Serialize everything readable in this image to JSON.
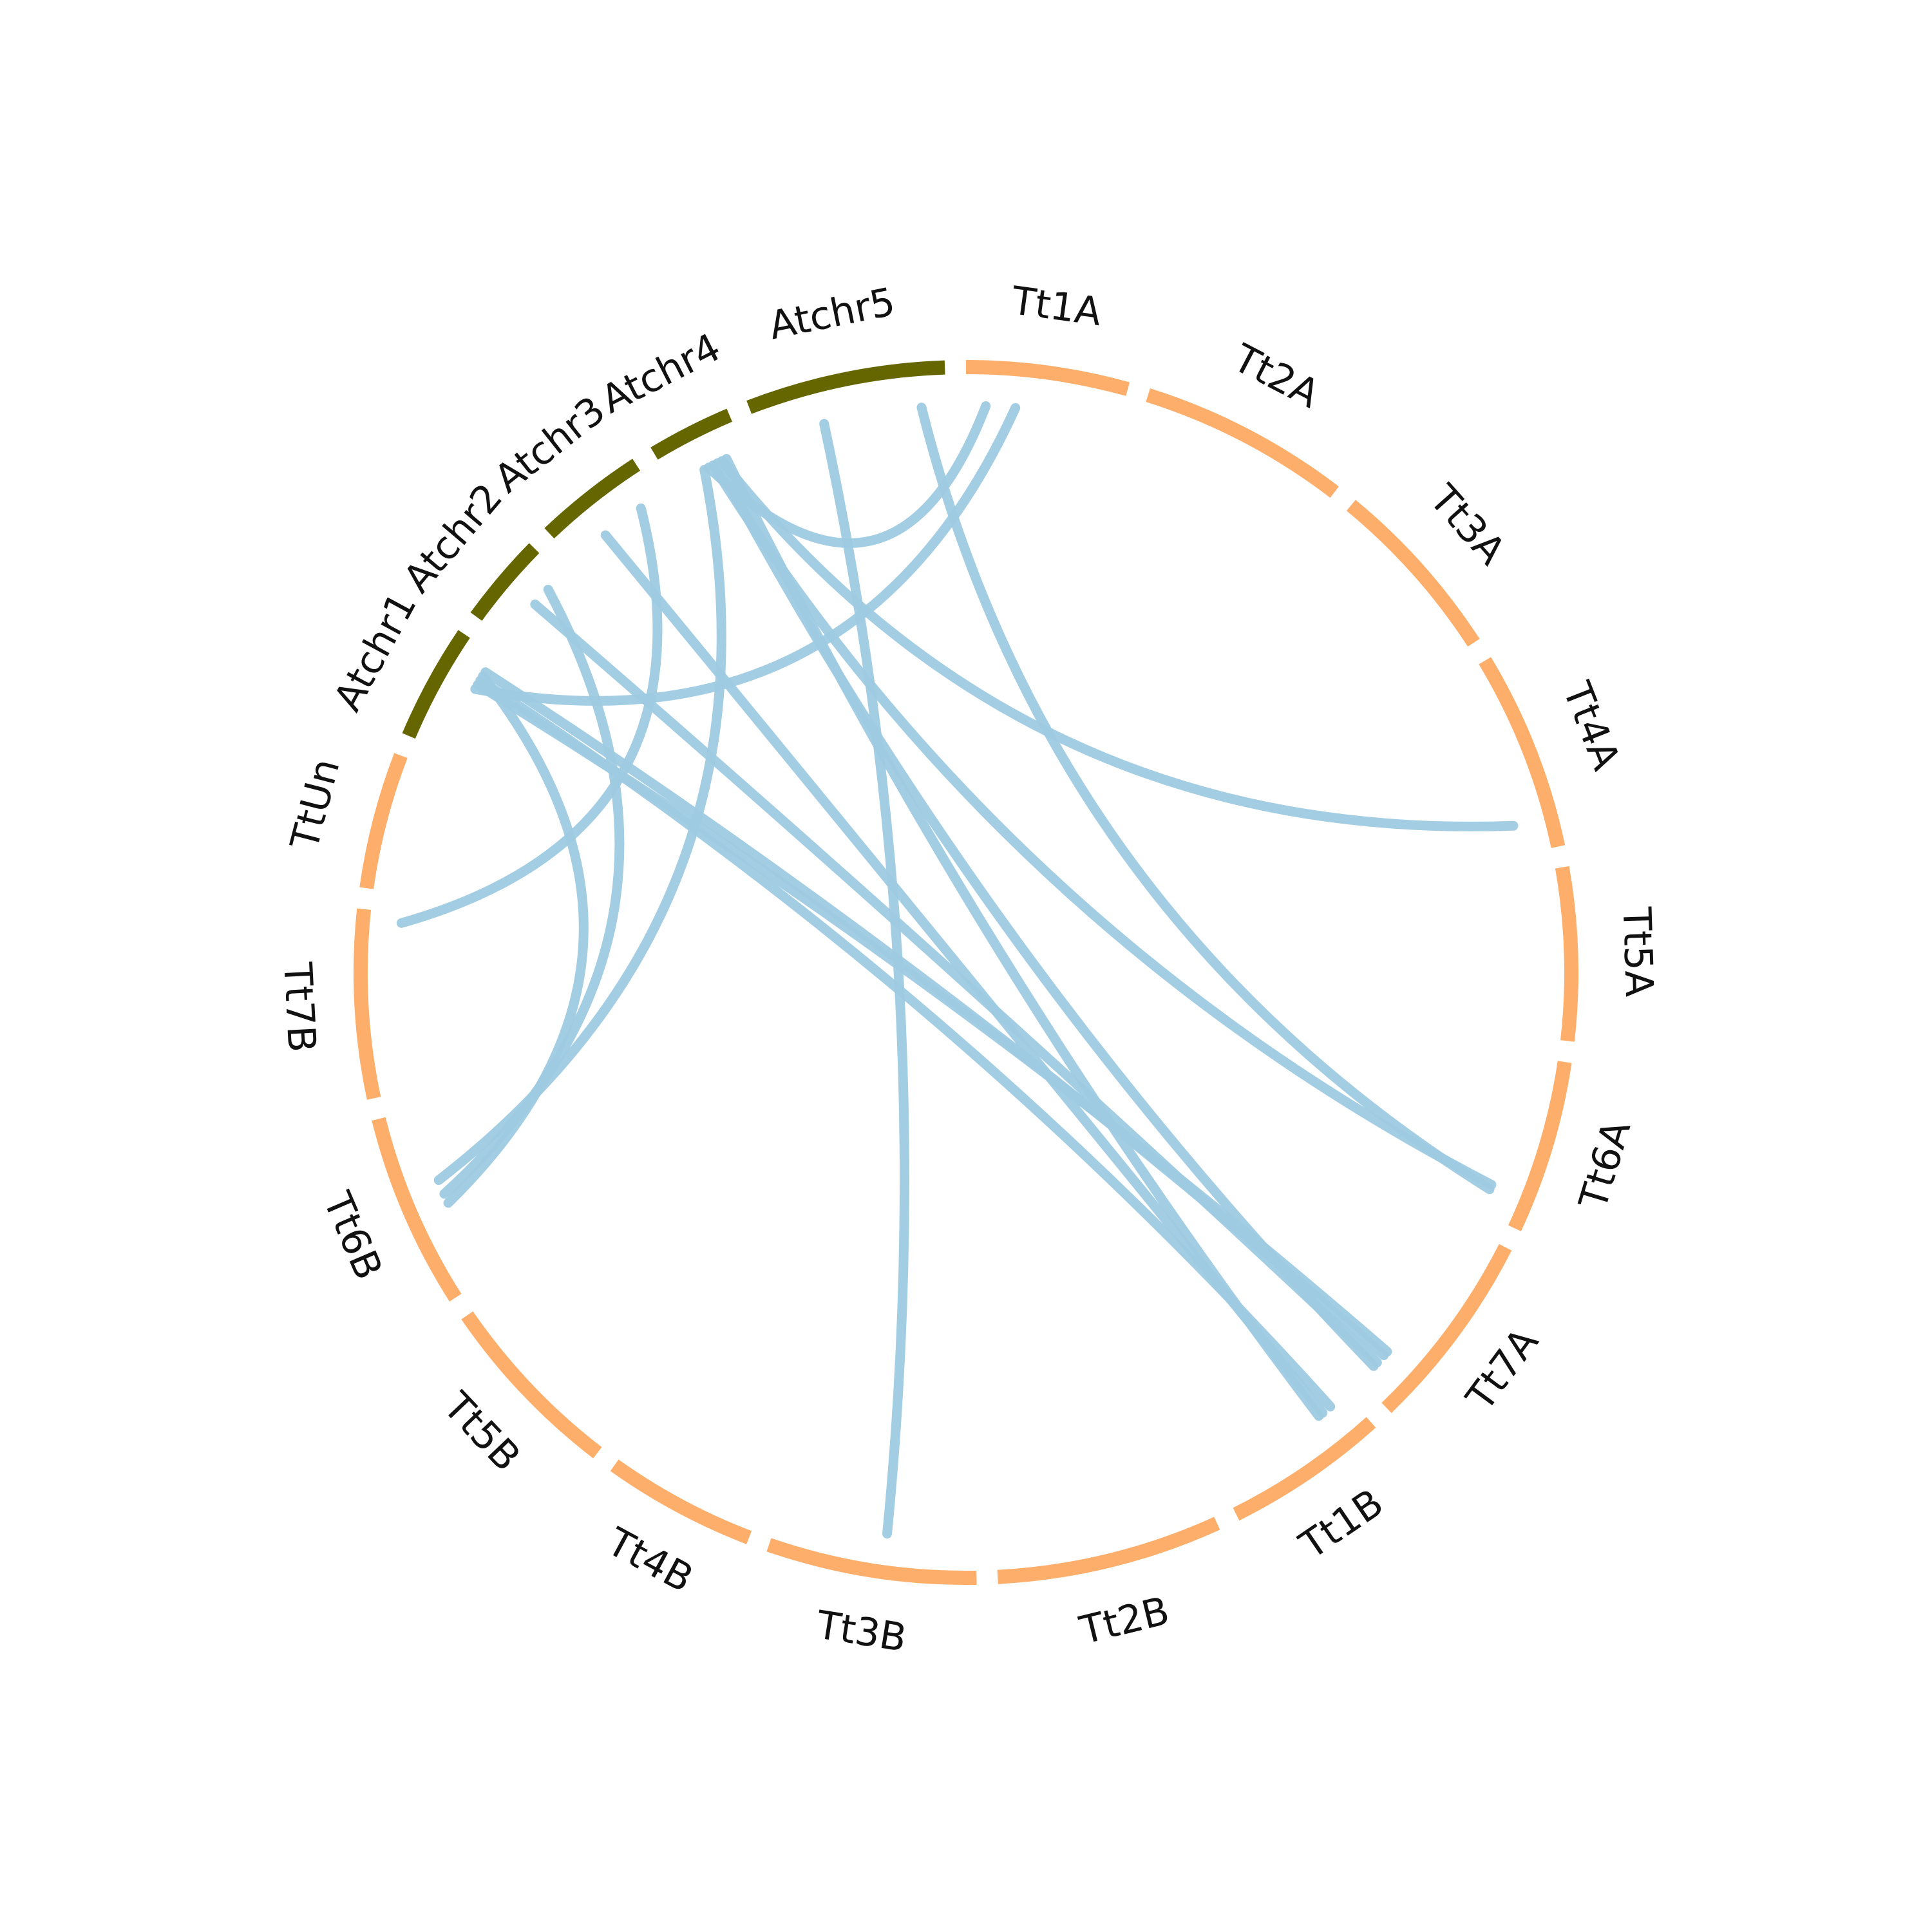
{
  "chart_data": {
    "type": "chord",
    "colors": {
      "wheat": "#fdae6b",
      "arabidopsis": "#666600",
      "link": "#9ecae1"
    },
    "segments": [
      {
        "name": "Tt1A",
        "group": "wheat",
        "start": 0.0,
        "end": 15.5
      },
      {
        "name": "Tt2A",
        "group": "wheat",
        "start": 17.5,
        "end": 37.5
      },
      {
        "name": "Tt3A",
        "group": "wheat",
        "start": 39.5,
        "end": 57.0
      },
      {
        "name": "Tt4A",
        "group": "wheat",
        "start": 59.0,
        "end": 78.0
      },
      {
        "name": "Tt5A",
        "group": "wheat",
        "start": 80.0,
        "end": 96.5
      },
      {
        "name": "Tt6A",
        "group": "wheat",
        "start": 98.5,
        "end": 115.0
      },
      {
        "name": "Tt7A",
        "group": "wheat",
        "start": 117.0,
        "end": 136.0
      },
      {
        "name": "Tt1B",
        "group": "wheat",
        "start": 138.0,
        "end": 153.5
      },
      {
        "name": "Tt2B",
        "group": "wheat",
        "start": 155.5,
        "end": 177.0
      },
      {
        "name": "Tt3B",
        "group": "wheat",
        "start": 179.0,
        "end": 199.0
      },
      {
        "name": "Tt4B",
        "group": "wheat",
        "start": 201.0,
        "end": 215.5
      },
      {
        "name": "Tt5B",
        "group": "wheat",
        "start": 217.5,
        "end": 235.5
      },
      {
        "name": "Tt6B",
        "group": "wheat",
        "start": 237.5,
        "end": 256.0
      },
      {
        "name": "Tt7B",
        "group": "wheat",
        "start": 258.0,
        "end": 276.0
      },
      {
        "name": "TtUn",
        "group": "wheat",
        "start": 278.0,
        "end": 291.0
      },
      {
        "name": "Atchr1",
        "group": "arabidopsis",
        "start": 293.0,
        "end": 304.0
      },
      {
        "name": "Atchr2",
        "group": "arabidopsis",
        "start": 306.0,
        "end": 314.5
      },
      {
        "name": "Atchr3",
        "group": "arabidopsis",
        "start": 316.5,
        "end": 327.0
      },
      {
        "name": "Atchr4",
        "group": "arabidopsis",
        "start": 329.0,
        "end": 337.0
      },
      {
        "name": "Atchr5",
        "group": "arabidopsis",
        "start": 339.0,
        "end": 358.0
      }
    ],
    "links": [
      {
        "from": "Atchr1",
        "from_pos": 302.0,
        "to": "Tt7A",
        "to_pos": 132.5
      },
      {
        "from": "Atchr1",
        "from_pos": 300.5,
        "to": "Tt7A",
        "to_pos": 132.0
      },
      {
        "from": "Atchr1",
        "from_pos": 301.0,
        "to": "Tt1B",
        "to_pos": 140.0
      },
      {
        "from": "Atchr1",
        "from_pos": 300.0,
        "to": "Tt1A",
        "to_pos": 5.0
      },
      {
        "from": "Atchr1",
        "from_pos": 301.5,
        "to": "Tt6B",
        "to_pos": 246.0
      },
      {
        "from": "Atchr2",
        "from_pos": 312.5,
        "to": "Tt6B",
        "to_pos": 247.0
      },
      {
        "from": "Atchr2",
        "from_pos": 310.5,
        "to": "Tt7A",
        "to_pos": 133.5
      },
      {
        "from": "Atchr3",
        "from_pos": 320.5,
        "to": "Tt1B",
        "to_pos": 141.0
      },
      {
        "from": "Atchr3",
        "from_pos": 325.0,
        "to": "Tt7B",
        "to_pos": 275.0
      },
      {
        "from": "Atchr4",
        "from_pos": 332.5,
        "to": "Tt6B",
        "to_pos": 248.5
      },
      {
        "from": "Atchr4",
        "from_pos": 335.0,
        "to": "Tt1B",
        "to_pos": 141.5
      },
      {
        "from": "Atchr4",
        "from_pos": 333.5,
        "to": "Tt6A",
        "to_pos": 112.0
      },
      {
        "from": "Atchr4",
        "from_pos": 334.5,
        "to": "Tt4A",
        "to_pos": 75.0
      },
      {
        "from": "Atchr4",
        "from_pos": 334.0,
        "to": "Tt7A",
        "to_pos": 134.0
      },
      {
        "from": "Atchr5",
        "from_pos": 355.5,
        "to": "Tt6A",
        "to_pos": 112.5
      },
      {
        "from": "Atchr5",
        "from_pos": 345.5,
        "to": "Tt3B",
        "to_pos": 188.0
      },
      {
        "from": "Atchr4",
        "from_pos": 333.0,
        "to": "Tt1A",
        "to_pos": 2.0
      }
    ]
  }
}
